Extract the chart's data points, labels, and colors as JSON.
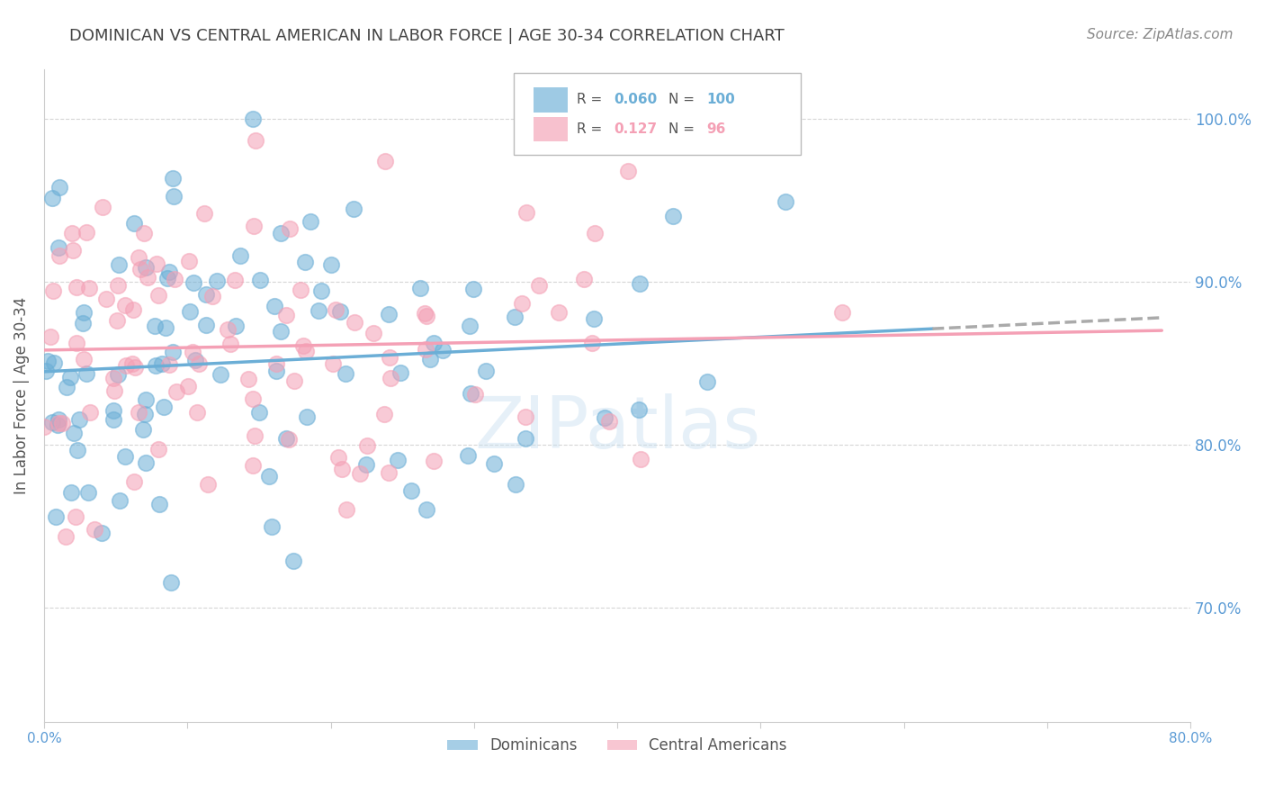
{
  "title": "DOMINICAN VS CENTRAL AMERICAN IN LABOR FORCE | AGE 30-34 CORRELATION CHART",
  "source": "Source: ZipAtlas.com",
  "ylabel": "In Labor Force | Age 30-34",
  "xlim": [
    0.0,
    0.8
  ],
  "ylim": [
    0.63,
    1.03
  ],
  "yticks": [
    0.7,
    0.8,
    0.9,
    1.0
  ],
  "yticklabels": [
    "70.0%",
    "80.0%",
    "90.0%",
    "100.0%"
  ],
  "xtick_left_label": "0.0%",
  "xtick_right_label": "80.0%",
  "dominicans_color": "#6baed6",
  "central_americans_color": "#f4a0b5",
  "dominicans_R": 0.06,
  "dominicans_N": 100,
  "central_americans_R": 0.127,
  "central_americans_N": 96,
  "background_color": "#ffffff",
  "grid_color": "#cccccc",
  "title_color": "#444444",
  "axis_label_color": "#555555",
  "tick_label_color": "#5b9bd5",
  "watermark": "ZIPatlas",
  "legend_R_label": "R = ",
  "legend_N_label": "N = "
}
